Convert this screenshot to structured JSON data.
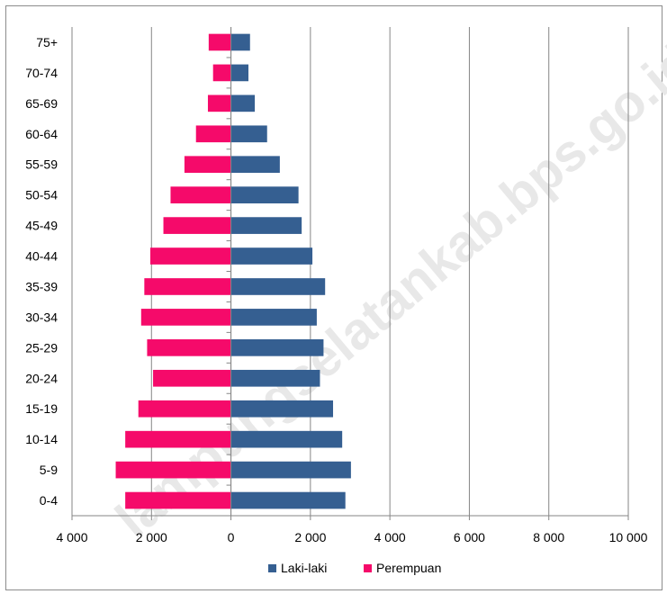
{
  "chart_data": {
    "type": "bar",
    "orientation": "horizontal",
    "categories": [
      "0-4",
      "5-9",
      "10-14",
      "15-19",
      "20-24",
      "25-29",
      "30-34",
      "35-39",
      "40-44",
      "45-49",
      "50-54",
      "55-59",
      "60-64",
      "65-69",
      "70-74",
      "75+"
    ],
    "series": [
      {
        "name": "Laki-laki",
        "color": "#355f91",
        "side": "right",
        "values": [
          2880,
          3020,
          2800,
          2570,
          2240,
          2330,
          2160,
          2370,
          2050,
          1780,
          1700,
          1230,
          910,
          600,
          440,
          480
        ]
      },
      {
        "name": "Perempuan",
        "color": "#f50a6a",
        "side": "left",
        "values": [
          2660,
          2900,
          2660,
          2330,
          1960,
          2110,
          2260,
          2180,
          2030,
          1700,
          1520,
          1170,
          880,
          580,
          450,
          560
        ]
      }
    ],
    "xlim": [
      -4000,
      10000
    ],
    "x_ticks": [
      -4000,
      -2000,
      0,
      2000,
      4000,
      6000,
      8000,
      10000
    ],
    "x_tick_labels": [
      "4 000",
      "2 000",
      "0",
      "2 000",
      "4 000",
      "6 000",
      "8 000",
      "10 000"
    ],
    "grid": "vertical",
    "legend_position": "bottom",
    "title": "",
    "xlabel": "",
    "ylabel": ""
  },
  "watermark": "lampungselatankab.bps.go.id"
}
